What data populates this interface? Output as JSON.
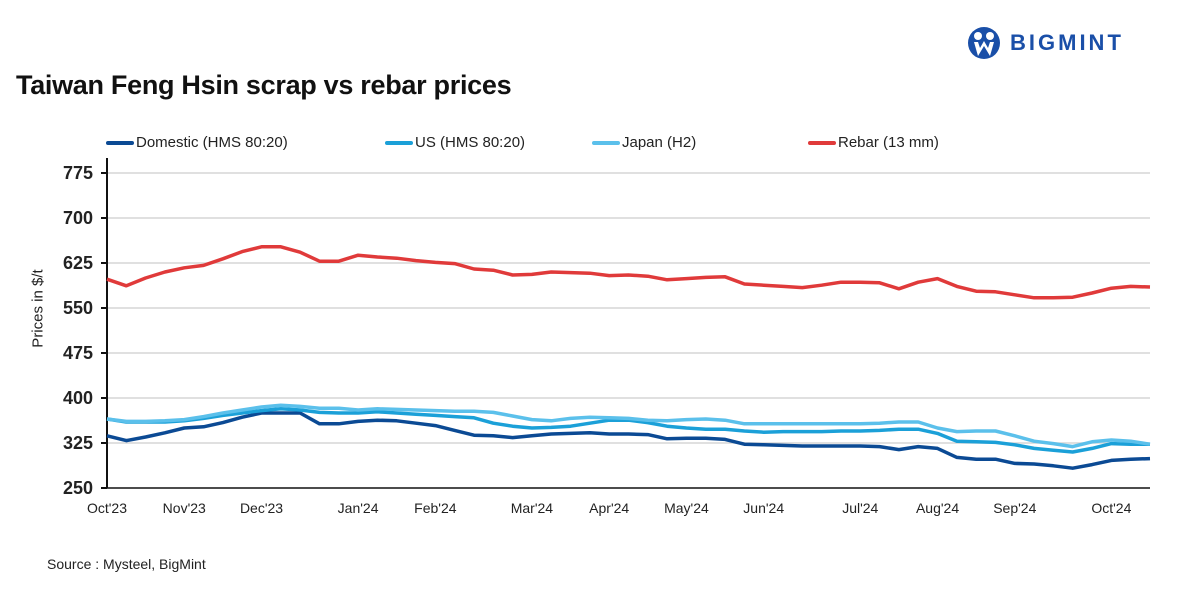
{
  "title": "Taiwan Feng Hsin scrap vs rebar prices",
  "logo": {
    "text": "BIGMINT",
    "color": "#1a4fa8"
  },
  "source": "Source : Mysteel, BigMint",
  "chart_data": {
    "type": "line",
    "title": "Taiwan Feng Hsin scrap vs rebar prices",
    "xlabel": "",
    "ylabel": "Prices in $/t",
    "ylim": [
      250,
      775
    ],
    "yticks": [
      250,
      325,
      400,
      475,
      550,
      625,
      700,
      775
    ],
    "grid": true,
    "legend_position": "top",
    "x_tick_labels": [
      {
        "label": "Oct'23",
        "index": 0
      },
      {
        "label": "Nov'23",
        "index": 4
      },
      {
        "label": "Dec'23",
        "index": 8
      },
      {
        "label": "Jan'24",
        "index": 13
      },
      {
        "label": "Feb'24",
        "index": 17
      },
      {
        "label": "Mar'24",
        "index": 22
      },
      {
        "label": "Apr'24",
        "index": 26
      },
      {
        "label": "May'24",
        "index": 30
      },
      {
        "label": "Jun'24",
        "index": 34
      },
      {
        "label": "Jul'24",
        "index": 39
      },
      {
        "label": "Aug'24",
        "index": 43
      },
      {
        "label": "Sep'24",
        "index": 47
      },
      {
        "label": "Oct'24",
        "index": 52
      }
    ],
    "series": [
      {
        "name": "Domestic (HMS 80:20)",
        "color": "#0b4a94",
        "values": [
          337,
          329,
          335,
          342,
          350,
          352,
          359,
          368,
          375,
          375,
          375,
          357,
          357,
          361,
          363,
          362,
          358,
          354,
          346,
          338,
          337,
          334,
          337,
          340,
          341,
          342,
          340,
          340,
          339,
          332,
          333,
          333,
          331,
          323,
          322,
          321,
          320,
          320,
          320,
          320,
          319,
          314,
          319,
          316,
          301,
          298,
          298,
          291,
          290,
          287,
          283,
          289,
          296,
          298,
          299
        ]
      },
      {
        "name": "US (HMS 80:20)",
        "color": "#1ba0d8",
        "values": [
          365,
          360,
          360,
          360,
          362,
          366,
          371,
          375,
          379,
          382,
          380,
          376,
          375,
          375,
          377,
          375,
          373,
          371,
          369,
          367,
          358,
          353,
          350,
          351,
          353,
          358,
          363,
          363,
          359,
          353,
          350,
          348,
          348,
          345,
          343,
          344,
          344,
          344,
          345,
          345,
          346,
          348,
          348,
          341,
          328,
          327,
          326,
          322,
          316,
          313,
          310,
          316,
          324,
          323,
          323
        ]
      },
      {
        "name": "Japan (H2)",
        "color": "#5bc0eb",
        "values": [
          365,
          361,
          361,
          362,
          364,
          369,
          375,
          380,
          385,
          388,
          386,
          383,
          383,
          380,
          382,
          381,
          380,
          379,
          378,
          378,
          376,
          370,
          364,
          362,
          366,
          368,
          367,
          366,
          363,
          362,
          364,
          365,
          363,
          357,
          357,
          357,
          357,
          357,
          357,
          357,
          358,
          360,
          360,
          350,
          344,
          345,
          345,
          337,
          328,
          324,
          319,
          327,
          330,
          328,
          323
        ]
      },
      {
        "name": "Rebar (13 mm)",
        "color": "#e03a3a",
        "values": [
          598,
          587,
          600,
          610,
          617,
          621,
          632,
          644,
          652,
          652,
          643,
          628,
          628,
          638,
          635,
          633,
          629,
          626,
          624,
          615,
          613,
          605,
          606,
          610,
          609,
          608,
          604,
          605,
          603,
          597,
          599,
          601,
          602,
          590,
          588,
          586,
          584,
          588,
          593,
          593,
          592,
          582,
          593,
          599,
          586,
          578,
          577,
          572,
          567,
          567,
          568,
          575,
          583,
          586,
          585
        ]
      }
    ]
  }
}
